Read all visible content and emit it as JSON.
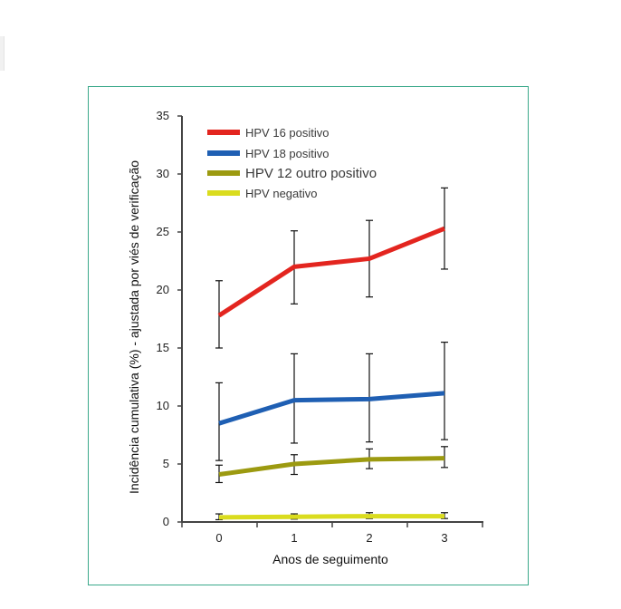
{
  "chart_data": {
    "type": "line",
    "x": [
      0,
      1,
      2,
      3
    ],
    "xlabel": "Anos de seguimento",
    "ylabel": "Incidência cumulativa (%) - ajustada por viés de verificação",
    "ylim": [
      0,
      35
    ],
    "yticks": [
      0,
      5,
      10,
      15,
      20,
      25,
      30,
      35
    ],
    "xticks": [
      "0",
      "1",
      "2",
      "3"
    ],
    "legend_position": "top-left",
    "series": [
      {
        "name": "HPV 16 positivo",
        "color": "#e3251f",
        "values": [
          17.8,
          22.0,
          22.7,
          25.3
        ],
        "err_low": [
          15.0,
          18.8,
          19.4,
          21.8
        ],
        "err_high": [
          20.8,
          25.1,
          26.0,
          28.8
        ]
      },
      {
        "name": "HPV 18 positivo",
        "color": "#1f5fb3",
        "values": [
          8.5,
          10.5,
          10.6,
          11.1
        ],
        "err_low": [
          5.3,
          6.8,
          6.9,
          7.1
        ],
        "err_high": [
          12.0,
          14.5,
          14.5,
          15.5
        ]
      },
      {
        "name": "HPV 12 outro positivo",
        "color": "#9c9a10",
        "values": [
          4.1,
          5.0,
          5.4,
          5.5
        ],
        "err_low": [
          3.4,
          4.1,
          4.6,
          4.7
        ],
        "err_high": [
          4.9,
          5.8,
          6.3,
          6.5
        ]
      },
      {
        "name": "HPV negativo",
        "color": "#dadc1e",
        "values": [
          0.4,
          0.45,
          0.5,
          0.5
        ],
        "err_low": [
          0.2,
          0.25,
          0.3,
          0.3
        ],
        "err_high": [
          0.7,
          0.7,
          0.8,
          0.8
        ]
      }
    ]
  }
}
